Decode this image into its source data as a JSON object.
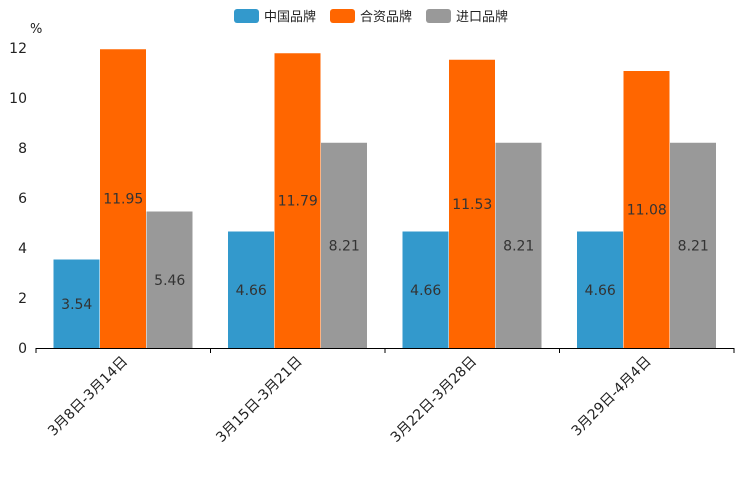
{
  "chart_data": {
    "type": "bar",
    "title": "",
    "xlabel": "",
    "ylabel": "%",
    "ylim": [
      0,
      12
    ],
    "yticks": [
      0,
      2,
      4,
      6,
      8,
      10,
      12
    ],
    "grid": false,
    "legend_position": "top-center",
    "categories": [
      "3月8日-3月14日",
      "3月15日-3月21日",
      "3月22日-3月28日",
      "3月29日-4月4日"
    ],
    "series": [
      {
        "name": "中国品牌",
        "color": "#3399cc",
        "values": [
          3.54,
          4.66,
          4.66,
          4.66
        ]
      },
      {
        "name": "合资品牌",
        "color": "#ff6600",
        "values": [
          11.95,
          11.79,
          11.53,
          11.08
        ]
      },
      {
        "name": "进口品牌",
        "color": "#999999",
        "values": [
          5.46,
          8.21,
          8.21,
          8.21
        ]
      }
    ]
  }
}
